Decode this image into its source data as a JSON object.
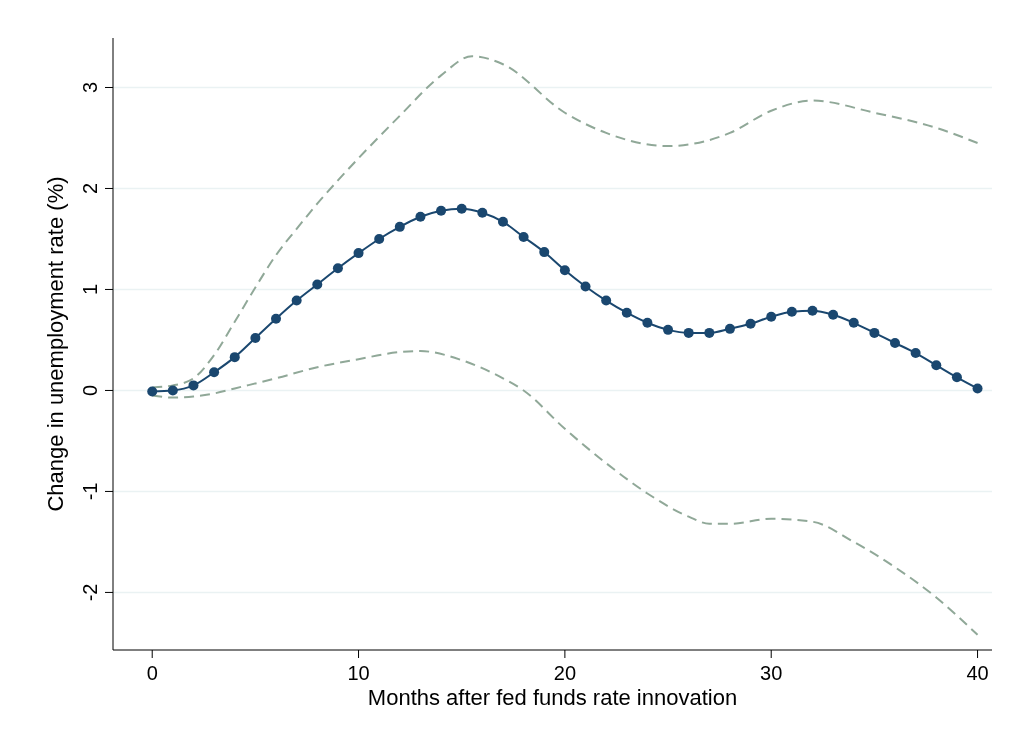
{
  "chart_data": {
    "type": "line",
    "xlabel": "Months after fed funds rate innovation",
    "ylabel": "Change in unemployment rate (%)",
    "xlim": [
      -1.9,
      40.7
    ],
    "xticks": [
      0,
      10,
      20,
      30,
      40
    ],
    "ylim": [
      -2.57,
      3.49
    ],
    "yticks": [
      -2,
      -1,
      0,
      1,
      2,
      3
    ],
    "grid": "y",
    "series": [
      {
        "color": "#90a898",
        "line_style": "dashed",
        "marker": "none",
        "x": [
          0,
          1,
          2,
          3,
          4,
          5,
          6,
          7,
          8,
          9,
          10,
          12,
          14,
          15.5,
          17,
          20,
          22,
          25,
          28,
          30,
          32,
          35,
          38,
          40
        ],
        "values": [
          0.03,
          0.05,
          0.12,
          0.35,
          0.68,
          1.02,
          1.34,
          1.6,
          1.85,
          2.08,
          2.3,
          2.72,
          3.12,
          3.31,
          3.23,
          2.75,
          2.55,
          2.42,
          2.55,
          2.77,
          2.87,
          2.75,
          2.6,
          2.45
        ]
      },
      {
        "color": "#90a898",
        "line_style": "dashed",
        "marker": "none",
        "x": [
          0,
          1,
          2,
          3,
          4,
          6,
          8,
          10,
          12,
          13,
          15,
          17,
          18,
          20,
          22,
          24,
          26,
          27,
          28,
          30,
          32,
          34,
          36,
          38,
          40
        ],
        "values": [
          -0.05,
          -0.07,
          -0.06,
          -0.03,
          0.02,
          0.12,
          0.23,
          0.31,
          0.38,
          0.39,
          0.3,
          0.12,
          0.0,
          -0.38,
          -0.72,
          -1.02,
          -1.25,
          -1.32,
          -1.32,
          -1.27,
          -1.3,
          -1.5,
          -1.75,
          -2.05,
          -2.42
        ]
      },
      {
        "color": "#1a476f",
        "line_style": "solid",
        "marker": "circle",
        "x": [
          0,
          1,
          2,
          3,
          4,
          5,
          6,
          7,
          8,
          9,
          10,
          11,
          12,
          13,
          14,
          15,
          16,
          17,
          18,
          19,
          20,
          21,
          22,
          23,
          24,
          25,
          26,
          27,
          28,
          29,
          30,
          31,
          32,
          33,
          34,
          35,
          36,
          37,
          38,
          39,
          40
        ],
        "values": [
          -0.01,
          0.0,
          0.05,
          0.18,
          0.33,
          0.52,
          0.71,
          0.89,
          1.05,
          1.21,
          1.36,
          1.5,
          1.62,
          1.72,
          1.78,
          1.8,
          1.76,
          1.67,
          1.52,
          1.37,
          1.19,
          1.03,
          0.89,
          0.77,
          0.67,
          0.6,
          0.57,
          0.57,
          0.61,
          0.66,
          0.73,
          0.78,
          0.79,
          0.75,
          0.67,
          0.57,
          0.47,
          0.37,
          0.25,
          0.13,
          0.02
        ]
      }
    ]
  }
}
